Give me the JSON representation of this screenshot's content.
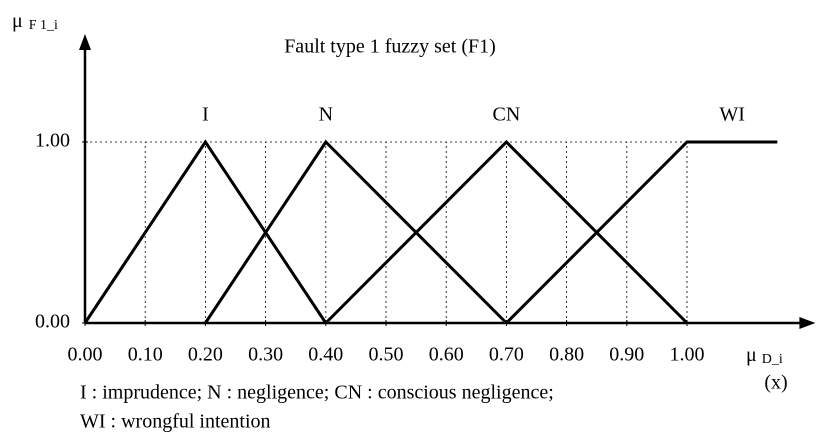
{
  "chart_data": {
    "type": "line",
    "title": "Fault type 1 fuzzy set (F1)",
    "ylabel": {
      "symbol": "μ",
      "subscript": "F 1_i"
    },
    "xlabel": {
      "symbol": "μ",
      "subscript": "D_i",
      "note": "(x)"
    },
    "xlim": [
      0,
      1.2
    ],
    "ylim": [
      0,
      1
    ],
    "xticks": [
      {
        "value": 0,
        "label": "0.00"
      },
      {
        "value": 0.1,
        "label": "0.10"
      },
      {
        "value": 0.2,
        "label": "0.20"
      },
      {
        "value": 0.3,
        "label": "0.30"
      },
      {
        "value": 0.4,
        "label": "0.40"
      },
      {
        "value": 0.5,
        "label": "0.50"
      },
      {
        "value": 0.6,
        "label": "0.60"
      },
      {
        "value": 0.7,
        "label": "0.70"
      },
      {
        "value": 0.8,
        "label": "0.80"
      },
      {
        "value": 0.9,
        "label": "0.90"
      },
      {
        "value": 1,
        "label": "1.00"
      }
    ],
    "yticks": [
      {
        "value": 0,
        "label": "0.00"
      },
      {
        "value": 1,
        "label": "1.00"
      }
    ],
    "grid": true,
    "series": [
      {
        "name": "I",
        "color": "#000000",
        "x": [
          0,
          0.2,
          0.4
        ],
        "values": [
          0,
          1,
          0
        ]
      },
      {
        "name": "N",
        "color": "#000000",
        "x": [
          0.2,
          0.4,
          0.7
        ],
        "values": [
          0,
          1,
          0
        ]
      },
      {
        "name": "CN",
        "color": "#000000",
        "x": [
          0.4,
          0.7,
          1.0
        ],
        "values": [
          0,
          1,
          0
        ]
      },
      {
        "name": "WI",
        "color": "#000000",
        "x": [
          0.7,
          1.0,
          1.15
        ],
        "values": [
          0,
          1,
          1
        ]
      }
    ],
    "annotations": [
      "I : imprudence; N : negligence; CN : conscious negligence;",
      "WI : wrongful intention"
    ]
  }
}
